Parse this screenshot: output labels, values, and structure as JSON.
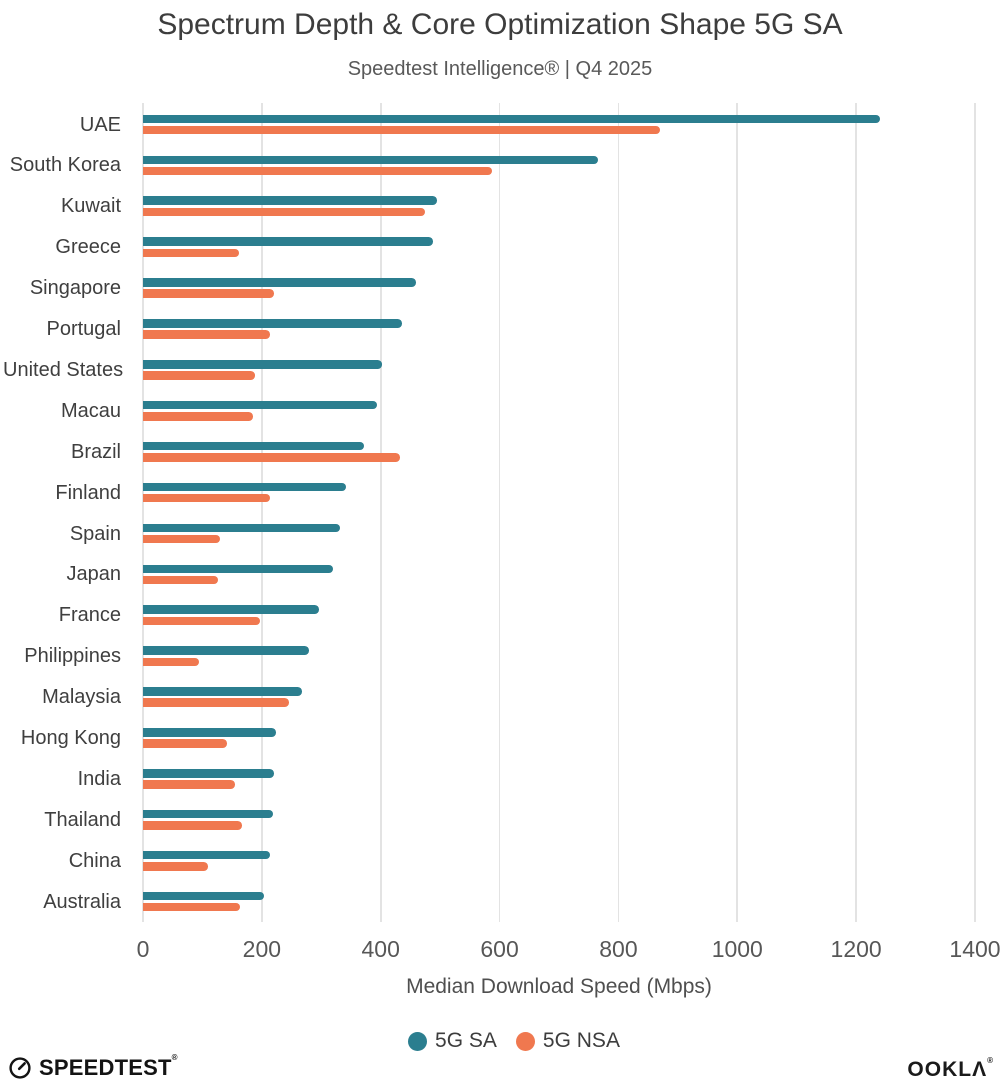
{
  "title": "Spectrum Depth & Core Optimization Shape 5G SA",
  "subtitle": "Speedtest Intelligence® | Q4 2025",
  "chart_data": {
    "type": "bar",
    "orientation": "horizontal",
    "categories": [
      "UAE",
      "South Korea",
      "Kuwait",
      "Greece",
      "Singapore",
      "Portugal",
      "United States",
      "Macau",
      "Brazil",
      "Finland",
      "Spain",
      "Japan",
      "France",
      "Philippines",
      "Malaysia",
      "Hong Kong",
      "India",
      "Thailand",
      "China",
      "Australia"
    ],
    "series": [
      {
        "name": "5G SA",
        "color": "#2B7E8F",
        "values": [
          1240,
          766,
          495,
          488,
          460,
          436,
          403,
          393,
          372,
          342,
          331,
          320,
          296,
          279,
          268,
          223,
          220,
          218,
          213,
          204
        ]
      },
      {
        "name": "5G NSA",
        "color": "#F0784F",
        "values": [
          870,
          587,
          474,
          162,
          220,
          213,
          188,
          185,
          432,
          213,
          130,
          127,
          197,
          95,
          246,
          142,
          155,
          167,
          110,
          163
        ]
      }
    ],
    "xlabel": "Median Download Speed (Mbps)",
    "xlim": [
      0,
      1400
    ],
    "xticks": [
      0,
      200,
      400,
      600,
      800,
      1000,
      1200,
      1400
    ],
    "grid": true,
    "legend_position": "bottom",
    "gridline_color": "#e3e3e3"
  },
  "footer": {
    "left_logo_text": "SPEEDTEST",
    "left_logo_mark": "®",
    "left_logo_icon": "speedtest-gauge-icon",
    "right_logo_text": "OOKLA",
    "right_logo_mark": "®"
  }
}
